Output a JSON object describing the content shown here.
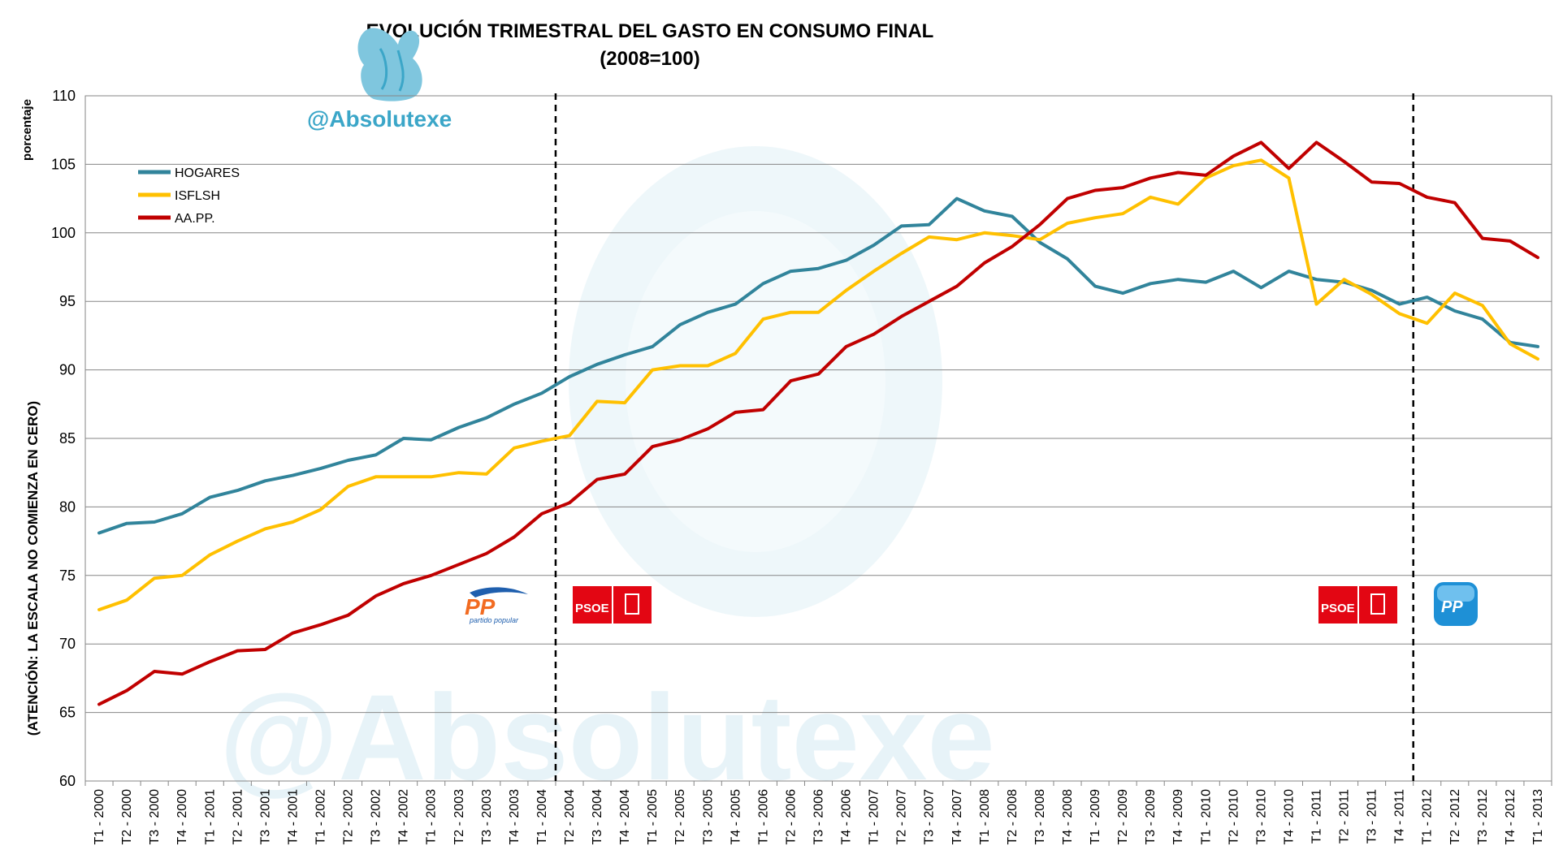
{
  "chart_data": {
    "type": "line",
    "title": "EVOLUCIÓN TRIMESTRAL DEL GASTO EN CONSUMO FINAL",
    "subtitle": "(2008=100)",
    "ylabel": "porcentaje",
    "y_note": "(ATENCIÓN: LA ESCALA NO COMIENZA EN CERO)",
    "ylim": [
      60,
      110
    ],
    "yticks": [
      60,
      65,
      70,
      75,
      80,
      85,
      90,
      95,
      100,
      105,
      110
    ],
    "grid": true,
    "legend_position": "top-left",
    "categories": [
      "T1 - 2000",
      "T2 - 2000",
      "T3 - 2000",
      "T4 - 2000",
      "T1 - 2001",
      "T2 - 2001",
      "T3 - 2001",
      "T4 - 2001",
      "T1 - 2002",
      "T2 - 2002",
      "T3 - 2002",
      "T4 - 2002",
      "T1 - 2003",
      "T2 - 2003",
      "T3 - 2003",
      "T4 - 2003",
      "T1 - 2004",
      "T2 - 2004",
      "T3 - 2004",
      "T4 - 2004",
      "T1 - 2005",
      "T2 - 2005",
      "T3 - 2005",
      "T4 - 2005",
      "T1 - 2006",
      "T2 - 2006",
      "T3 - 2006",
      "T4 - 2006",
      "T1 - 2007",
      "T2 - 2007",
      "T3 - 2007",
      "T4 - 2007",
      "T1 - 2008",
      "T2 - 2008",
      "T3 - 2008",
      "T4 - 2008",
      "T1 - 2009",
      "T2 - 2009",
      "T3 - 2009",
      "T4 - 2009",
      "T1 - 2010",
      "T2 - 2010",
      "T3 - 2010",
      "T4 - 2010",
      "T1 - 2011",
      "T2 - 2011",
      "T3 - 2011",
      "T4 - 2011",
      "T1 - 2012",
      "T2 - 2012",
      "T3 - 2012",
      "T4 - 2012",
      "T1 - 2013"
    ],
    "series": [
      {
        "name": "HOGARES",
        "color": "#31849B",
        "values": [
          78.1,
          78.8,
          78.9,
          79.5,
          80.7,
          81.2,
          81.9,
          82.3,
          82.8,
          83.4,
          83.8,
          85.0,
          84.9,
          85.8,
          86.5,
          87.5,
          88.3,
          89.5,
          90.4,
          91.1,
          91.7,
          93.3,
          94.2,
          94.8,
          96.3,
          97.2,
          97.4,
          98.0,
          99.1,
          100.5,
          100.6,
          102.5,
          101.6,
          101.2,
          99.3,
          98.1,
          96.1,
          95.6,
          96.3,
          96.6,
          96.4,
          97.2,
          96.0,
          97.2,
          96.6,
          96.4,
          95.8,
          94.8,
          95.3,
          94.3,
          93.7,
          92.0,
          91.7
        ]
      },
      {
        "name": "ISFLSH",
        "color": "#FFC000",
        "values": [
          72.5,
          73.2,
          74.8,
          75.0,
          76.5,
          77.5,
          78.4,
          78.9,
          79.8,
          81.5,
          82.2,
          82.2,
          82.2,
          82.5,
          82.4,
          84.3,
          84.8,
          85.2,
          87.7,
          87.6,
          90.0,
          90.3,
          90.3,
          91.2,
          93.7,
          94.2,
          94.2,
          95.8,
          97.2,
          98.5,
          99.7,
          99.5,
          100.0,
          99.8,
          99.5,
          100.7,
          101.1,
          101.4,
          102.6,
          102.1,
          104.0,
          104.9,
          105.3,
          104.0,
          94.8,
          96.6,
          95.5,
          94.1,
          93.4,
          95.6,
          94.7,
          91.9,
          90.8
        ]
      },
      {
        "name": "AA.PP.",
        "color": "#C00000",
        "values": [
          65.6,
          66.6,
          68.0,
          67.8,
          68.7,
          69.5,
          69.6,
          70.8,
          71.4,
          72.1,
          73.5,
          74.4,
          75.0,
          75.8,
          76.6,
          77.8,
          79.5,
          80.3,
          82.0,
          82.4,
          84.4,
          84.9,
          85.7,
          86.9,
          87.1,
          89.2,
          89.7,
          91.7,
          92.6,
          93.9,
          95.0,
          96.1,
          97.8,
          99.0,
          100.6,
          102.5,
          103.1,
          103.3,
          104.0,
          104.4,
          104.2,
          105.6,
          106.6,
          104.7,
          106.6,
          105.2,
          103.7,
          103.6,
          102.6,
          102.2,
          99.6,
          99.4,
          98.2
        ]
      }
    ],
    "vertical_markers": [
      {
        "after_category": "T1 - 2004",
        "style": "dashed"
      },
      {
        "after_category": "T4 - 2011",
        "style": "dashed"
      }
    ]
  },
  "branding": {
    "handle": "@Absolutexe",
    "watermark": "@Absolutexe",
    "party_logos": [
      {
        "label": "PP",
        "sublabel": "partido popular",
        "icon": "pp-bird-logo"
      },
      {
        "label": "PSOE",
        "icon": "psoe-fist-rose-logo"
      },
      {
        "label": "PSOE",
        "icon": "psoe-fist-rose-logo"
      },
      {
        "label": "PP",
        "icon": "pp-round-logo"
      }
    ]
  }
}
